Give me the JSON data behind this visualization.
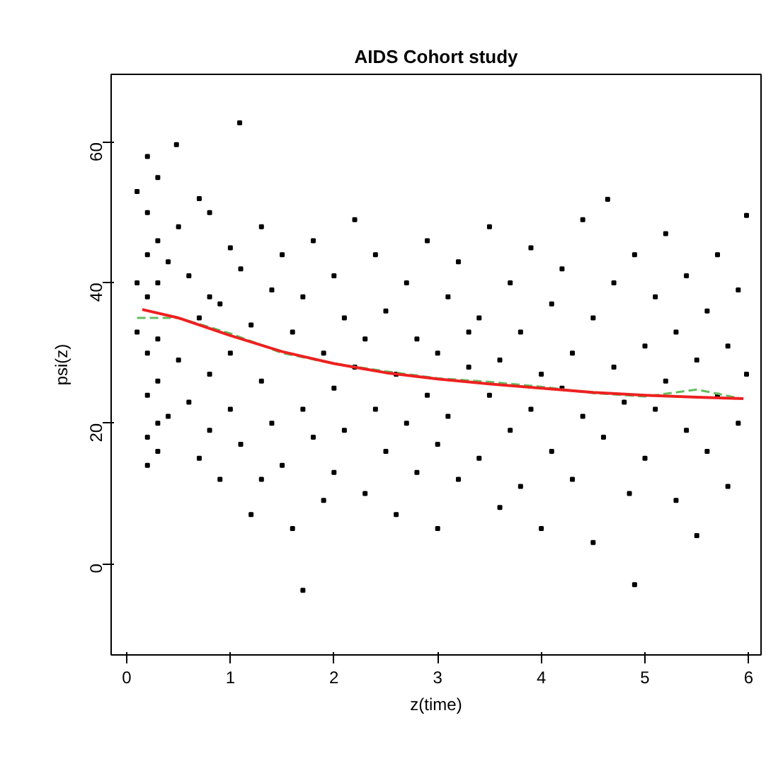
{
  "chart_data": {
    "type": "scatter",
    "title": "AIDS Cohort study",
    "xlabel": "z(time)",
    "ylabel": "psi(z)",
    "xlim": [
      -0.15,
      6.12
    ],
    "ylim": [
      -13,
      69.7
    ],
    "xticks": [
      0,
      1,
      2,
      3,
      4,
      5,
      6
    ],
    "yticks": [
      0,
      20,
      40,
      60
    ],
    "grid": false,
    "series": [
      {
        "marker": "square",
        "color": "#000000",
        "x": [
          0.1,
          0.1,
          0.1,
          0.2,
          0.2,
          0.2,
          0.2,
          0.2,
          0.2,
          0.2,
          0.2,
          0.3,
          0.3,
          0.3,
          0.3,
          0.3,
          0.3,
          0.3,
          0.4,
          0.4,
          0.48,
          0.5,
          0.5,
          0.6,
          0.6,
          0.7,
          0.7,
          0.7,
          0.8,
          0.8,
          0.8,
          0.8,
          0.9,
          0.9,
          1.0,
          1.0,
          1.0,
          1.09,
          1.1,
          1.1,
          1.2,
          1.2,
          1.3,
          1.3,
          1.3,
          1.4,
          1.4,
          1.5,
          1.5,
          1.6,
          1.6,
          1.7,
          1.7,
          1.7,
          1.8,
          1.8,
          1.9,
          1.9,
          2.0,
          2.0,
          2.0,
          2.1,
          2.1,
          2.2,
          2.2,
          2.3,
          2.3,
          2.4,
          2.4,
          2.5,
          2.5,
          2.6,
          2.6,
          2.7,
          2.7,
          2.8,
          2.8,
          2.9,
          2.9,
          3.0,
          3.0,
          3.0,
          3.1,
          3.1,
          3.2,
          3.2,
          3.3,
          3.3,
          3.4,
          3.4,
          3.5,
          3.5,
          3.6,
          3.6,
          3.7,
          3.7,
          3.8,
          3.8,
          3.9,
          3.9,
          4.0,
          4.0,
          4.1,
          4.1,
          4.2,
          4.2,
          4.3,
          4.3,
          4.4,
          4.4,
          4.5,
          4.5,
          4.64,
          4.6,
          4.7,
          4.7,
          4.8,
          4.85,
          4.9,
          4.9,
          5.0,
          5.0,
          5.1,
          5.1,
          5.2,
          5.2,
          5.3,
          5.3,
          5.4,
          5.4,
          5.5,
          5.5,
          5.6,
          5.6,
          5.7,
          5.7,
          5.8,
          5.8,
          5.9,
          5.9,
          5.98,
          5.98
        ],
        "values": [
          53,
          40,
          33,
          58,
          50,
          44,
          38,
          30,
          24,
          18,
          14,
          55,
          46,
          40,
          32,
          26,
          20,
          16,
          43,
          21,
          59.7,
          48,
          29,
          41,
          23,
          52,
          35,
          15,
          50,
          38,
          27,
          19,
          37,
          12,
          45,
          30,
          22,
          62.8,
          42,
          17,
          34,
          7,
          48,
          26,
          12,
          39,
          20,
          44,
          14,
          33,
          5,
          38,
          22,
          -3.8,
          46,
          18,
          30,
          9,
          41,
          25,
          13,
          35,
          19,
          49,
          28,
          32,
          10,
          44,
          22,
          36,
          16,
          27,
          7,
          40,
          20,
          32,
          13,
          46,
          24,
          30,
          17,
          5,
          38,
          21,
          43,
          12,
          28,
          33,
          35,
          15,
          48,
          24,
          29,
          8,
          40,
          19,
          33,
          11,
          45,
          22,
          27,
          5,
          37,
          16,
          42,
          25,
          30,
          12,
          49,
          21,
          35,
          3,
          51.9,
          18,
          40,
          28,
          23,
          10,
          -3.0,
          44,
          31,
          15,
          38,
          22,
          47,
          26,
          33,
          9,
          41,
          19,
          29,
          4,
          36,
          16,
          44,
          24,
          31,
          11,
          39,
          20,
          49.6,
          27
        ]
      },
      {
        "type": "line",
        "color": "#63be5f",
        "line_style": "dashed",
        "x": [
          0.1,
          0.5,
          1.0,
          1.5,
          2.0,
          2.5,
          3.0,
          3.5,
          4.0,
          4.5,
          5.0,
          5.5,
          5.9
        ],
        "values": [
          35,
          35,
          32.8,
          30,
          28.5,
          27.4,
          26.4,
          25.9,
          25.2,
          24.3,
          23.8,
          24.8,
          23.6
        ]
      },
      {
        "type": "line",
        "color": "#ee2020",
        "line_style": "solid",
        "x": [
          0.15,
          0.5,
          1.0,
          1.5,
          2.0,
          2.5,
          3.0,
          3.5,
          4.0,
          4.5,
          5.0,
          5.5,
          5.95
        ],
        "values": [
          36.2,
          35.0,
          32.5,
          30.2,
          28.5,
          27.2,
          26.3,
          25.6,
          25.0,
          24.4,
          24.0,
          23.7,
          23.5
        ]
      }
    ]
  }
}
